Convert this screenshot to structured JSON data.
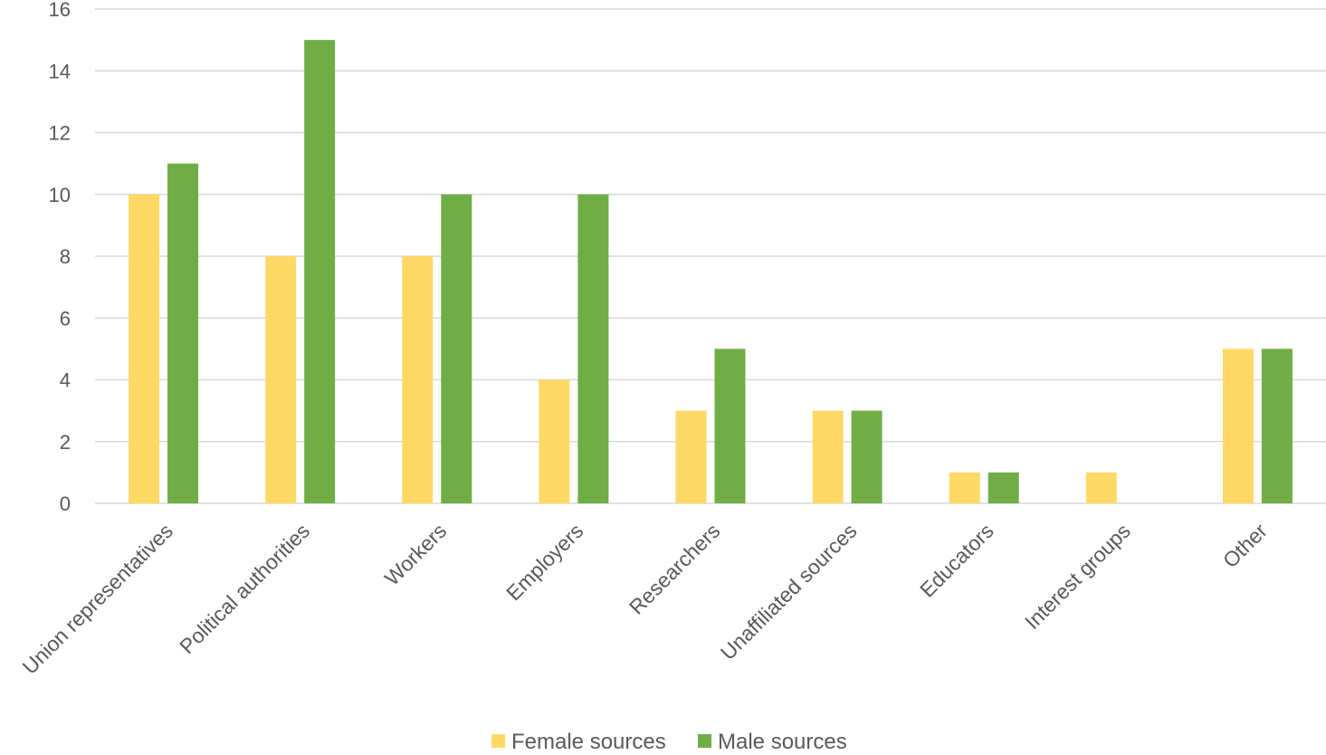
{
  "chart_data": {
    "type": "bar",
    "title": "",
    "xlabel": "",
    "ylabel": "",
    "ylim": [
      0,
      16
    ],
    "yticks": [
      0,
      2,
      4,
      6,
      8,
      10,
      12,
      14,
      16
    ],
    "grid": true,
    "legend_position": "bottom",
    "categories": [
      "Union representatives",
      "Political authorities",
      "Workers",
      "Employers",
      "Researchers",
      "Unaffiliated sources",
      "Educators",
      "Interest groups",
      "Other"
    ],
    "series": [
      {
        "name": "Female sources",
        "color": "#FFD966",
        "values": [
          10,
          8,
          8,
          4,
          3,
          3,
          1,
          1,
          5
        ]
      },
      {
        "name": "Male sources",
        "color": "#70AD47",
        "values": [
          11,
          15,
          10,
          10,
          5,
          3,
          1,
          0,
          5
        ]
      }
    ],
    "colors": {
      "gridline": "#D9D9D9",
      "axis_text": "#595959"
    }
  }
}
